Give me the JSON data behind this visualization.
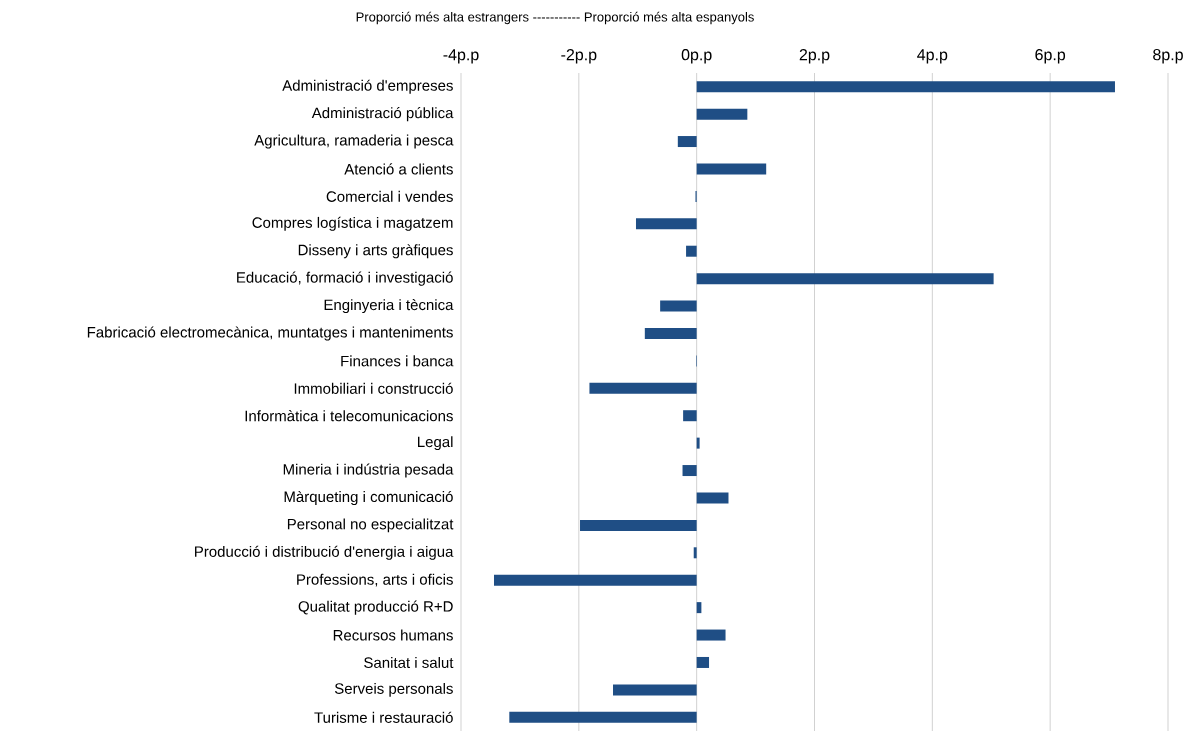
{
  "chart_data": {
    "type": "bar",
    "orientation": "horizontal",
    "xlabel": "Proporció més alta estrangers ----------- Proporció més alta espanyols",
    "categories": [
      "Administració d'empreses",
      "Administració pública",
      "Agricultura, ramaderia i pesca",
      "Atenció a clients",
      "Comercial i vendes",
      "Compres logística i magatzem",
      "Disseny i arts gràfiques",
      "Educació, formació i investigació",
      "Enginyeria i tècnica",
      "Fabricació electromecànica, muntatges i manteniments",
      "Finances i banca",
      "Immobiliari i construcció",
      "Informàtica i telecomunicacions",
      "Legal",
      "Mineria i indústria pesada",
      "Màrqueting i comunicació",
      "Personal no especialitzat",
      "Producció i distribució d'energia i aigua",
      "Professions, arts i oficis",
      "Qualitat producció R+D",
      "Recursos humans",
      "Sanitat i salut",
      "Serveis personals",
      "Turisme i restauració"
    ],
    "values": [
      7.1,
      0.86,
      -0.32,
      1.18,
      -0.02,
      -1.03,
      -0.18,
      5.04,
      -0.62,
      -0.88,
      -0.01,
      -1.82,
      -0.23,
      0.05,
      -0.24,
      0.54,
      -1.98,
      -0.05,
      -3.44,
      0.08,
      0.49,
      0.21,
      -1.42,
      -3.18
    ],
    "color": "#1f4e85",
    "xlim": [
      -4,
      8
    ],
    "xticks": [
      {
        "value": -4,
        "label": "-4p.p"
      },
      {
        "value": -2,
        "label": "-2p.p"
      },
      {
        "value": 0,
        "label": "0p.p"
      },
      {
        "value": 2,
        "label": "2p.p"
      },
      {
        "value": 4,
        "label": "4p.p"
      },
      {
        "value": 6,
        "label": "6p.p"
      },
      {
        "value": 8,
        "label": "8p.p"
      }
    ],
    "grid": "x"
  }
}
